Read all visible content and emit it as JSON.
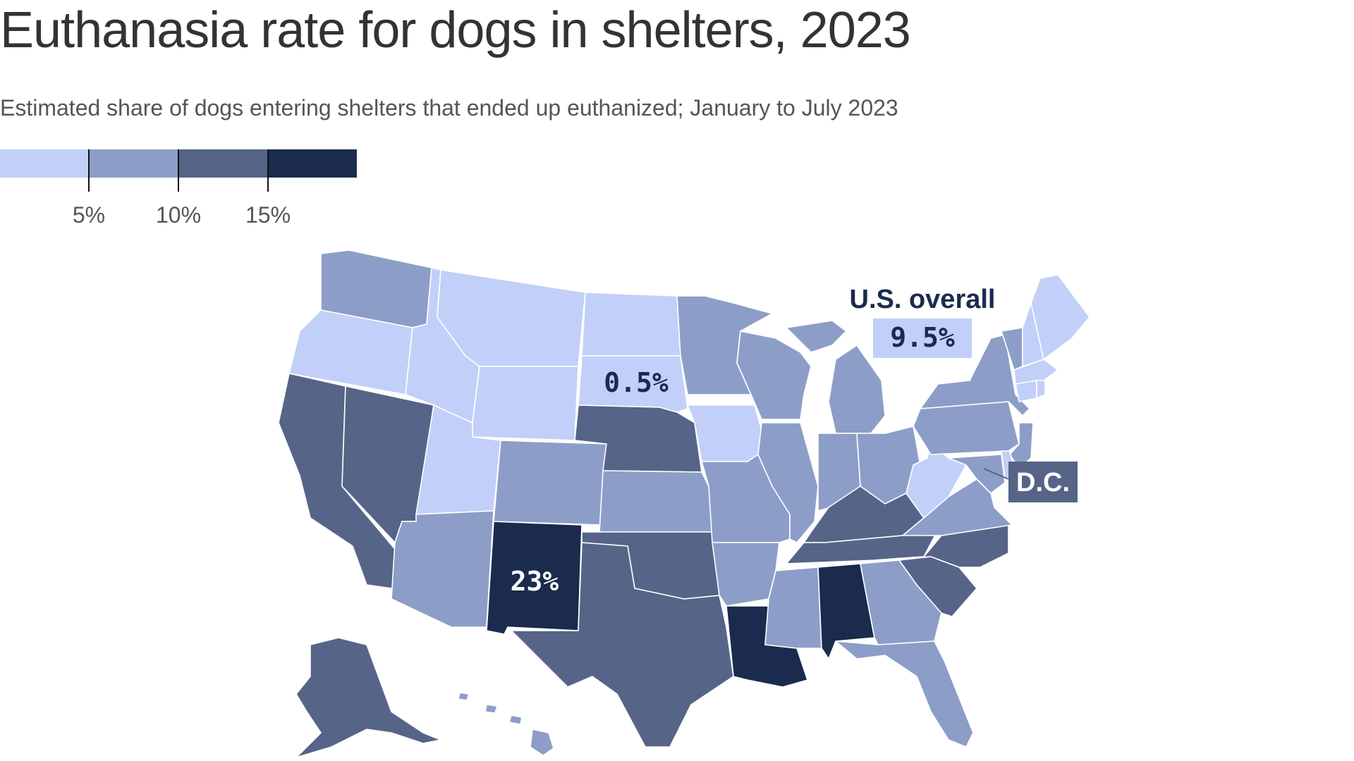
{
  "title": "Euthanasia rate for dogs in shelters, 2023",
  "subtitle": "Estimated share of dogs entering shelters that ended up euthanized; January to July 2023",
  "legend": {
    "bins": [
      {
        "color": "#c2cff8"
      },
      {
        "color": "#8c9ec8"
      },
      {
        "color": "#566488"
      },
      {
        "color": "#1a2b4d"
      }
    ],
    "ticks": [
      "5%",
      "10%",
      "15%"
    ]
  },
  "colors": {
    "bin1": "#c2cff8",
    "bin2": "#8c9ec8",
    "bin3": "#566488",
    "bin4": "#1a2b4d"
  },
  "states": {
    "WA": 2,
    "OR": 1,
    "CA": 3,
    "NV": 3,
    "ID": 1,
    "MT": 1,
    "WY": 1,
    "UT": 1,
    "AZ": 2,
    "NM": 4,
    "CO": 2,
    "ND": 1,
    "SD": 1,
    "NE": 3,
    "KS": 2,
    "OK": 3,
    "TX": 3,
    "MN": 2,
    "IA": 1,
    "MO": 2,
    "AR": 2,
    "LA": 4,
    "WI": 2,
    "IL": 2,
    "MI": 2,
    "IN": 2,
    "OH": 2,
    "KY": 3,
    "TN": 3,
    "MS": 2,
    "AL": 4,
    "GA": 2,
    "FL": 2,
    "SC": 3,
    "NC": 3,
    "VA": 2,
    "WV": 1,
    "PA": 2,
    "NY": 2,
    "VT": 2,
    "NH": 1,
    "ME": 1,
    "MA": 1,
    "CT": 1,
    "RI": 1,
    "NJ": 2,
    "DE": 1,
    "MD": 2,
    "DC": 3,
    "AK": 3,
    "HI": 2
  },
  "annotations": {
    "us_overall_label": "U.S. overall",
    "us_overall_value": "9.5%",
    "sd_value": "0.5%",
    "nm_value": "23%",
    "dc_label": "D.C."
  }
}
